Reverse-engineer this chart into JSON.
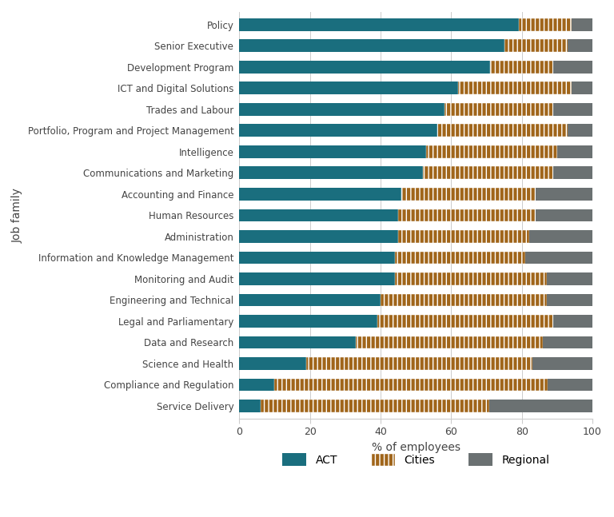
{
  "categories": [
    "Service Delivery",
    "Compliance and Regulation",
    "Science and Health",
    "Data and Research",
    "Legal and Parliamentary",
    "Engineering and Technical",
    "Monitoring and Audit",
    "Information and Knowledge Management",
    "Administration",
    "Human Resources",
    "Accounting and Finance",
    "Communications and Marketing",
    "Intelligence",
    "Portfolio, Program and Project Management",
    "Trades and Labour",
    "ICT and Digital Solutions",
    "Development Program",
    "Senior Executive",
    "Policy"
  ],
  "act": [
    6.0,
    10.0,
    19.0,
    33.0,
    39.0,
    40.0,
    44.0,
    44.0,
    45.0,
    45.0,
    46.0,
    52.0,
    53.0,
    56.0,
    58.0,
    62.0,
    71.0,
    75.0,
    79.2
  ],
  "cities": [
    64.7,
    77.4,
    64.0,
    53.0,
    50.0,
    47.0,
    43.0,
    37.0,
    37.0,
    39.0,
    38.0,
    37.0,
    37.0,
    37.0,
    31.0,
    32.0,
    18.0,
    18.0,
    15.0
  ],
  "regional": [
    29.3,
    12.6,
    17.0,
    14.0,
    11.0,
    13.0,
    13.0,
    19.0,
    18.0,
    16.0,
    16.0,
    11.0,
    10.0,
    7.0,
    11.0,
    6.0,
    11.0,
    7.0,
    5.8
  ],
  "act_color": "#1a6e7e",
  "cities_color": "#a0651a",
  "regional_color": "#6b7172",
  "background_color": "#ffffff",
  "xlabel": "% of employees",
  "ylabel": "Job family",
  "xlim": [
    0,
    100
  ],
  "cities_hatch": "|||"
}
